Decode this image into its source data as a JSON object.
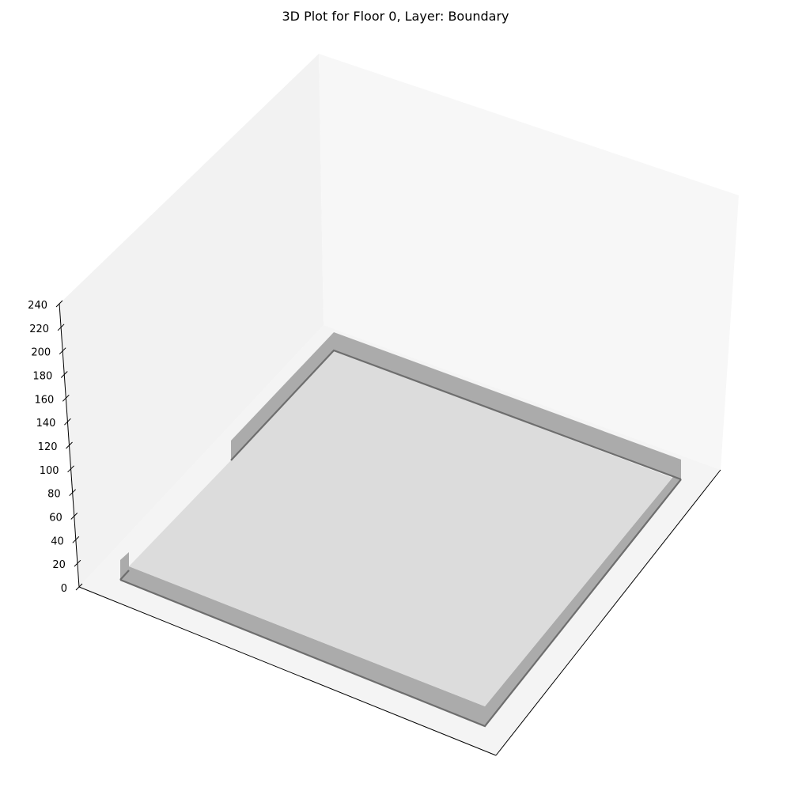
{
  "chart_data": {
    "type": "3d-surface",
    "title": "3D Plot for Floor 0, Layer: Boundary",
    "xlabel": "",
    "ylabel": "",
    "zlabel": "",
    "zlim": [
      0,
      240
    ],
    "z_ticks": [
      "0",
      "20",
      "40",
      "60",
      "80",
      "100",
      "120",
      "140",
      "160",
      "180",
      "200",
      "220",
      "240"
    ],
    "x_ticks": [],
    "y_ticks": [],
    "grid": false,
    "pane_colors": {
      "left_wall": "#f2f2f2",
      "back_wall": "#f7f7f7",
      "floor": "#f4f4f4"
    },
    "floor_plate": {
      "top_color": "#dcdcdc",
      "side_color": "#ababab",
      "edge_color": "#6e6e6e",
      "z_bottom": 0,
      "z_top": 20
    }
  }
}
